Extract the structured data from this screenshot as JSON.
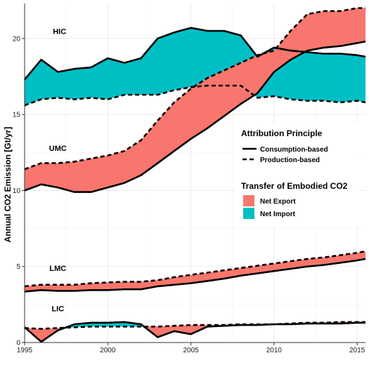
{
  "chart_data": {
    "type": "area",
    "xlabel": "",
    "ylabel": "Annual CO2 Emission [Gt/yr]",
    "xlim": [
      1995,
      2015.5
    ],
    "ylim": [
      0,
      22.3
    ],
    "x_ticks": [
      "1995",
      "2000",
      "2005",
      "2010",
      "2015"
    ],
    "y_ticks": [
      "0",
      "5",
      "10",
      "15",
      "20"
    ],
    "grid": true,
    "colors": {
      "net_export": "#f8766d",
      "net_import": "#00bfc4",
      "line": "#000000",
      "grid": "#ebebeb"
    },
    "legend": {
      "placement": "right",
      "attribution_title": "Attribution Principle",
      "consumption_label": "Consumption-based",
      "production_label": "Production-based",
      "transfer_title": "Transfer of Embodied CO2",
      "export_label": "Net Export",
      "import_label": "Net Import"
    },
    "series": [
      {
        "name": "HIC",
        "label_x": 1997.1,
        "label_y": 20.3,
        "x": [
          1995,
          1996,
          1997,
          1998,
          1999,
          2000,
          2001,
          2002,
          2003,
          2004,
          2005,
          2006,
          2007,
          2008,
          2009,
          2010,
          2011,
          2012,
          2013,
          2014,
          2015,
          2015.5
        ],
        "consumption": [
          17.3,
          18.6,
          17.8,
          18.0,
          18.1,
          18.7,
          18.4,
          18.7,
          20.0,
          20.4,
          20.7,
          20.5,
          20.5,
          20.2,
          18.8,
          19.4,
          19.2,
          19.1,
          19.0,
          19.0,
          18.9,
          18.8
        ],
        "production": [
          15.6,
          16.0,
          16.1,
          16.0,
          16.1,
          16.0,
          16.3,
          16.3,
          16.3,
          16.6,
          16.8,
          16.9,
          16.9,
          16.9,
          16.1,
          16.2,
          16.0,
          15.9,
          15.9,
          15.8,
          15.9,
          15.8
        ]
      },
      {
        "name": "UMC",
        "label_x": 1997.0,
        "label_y": 12.6,
        "x": [
          1995,
          1996,
          1997,
          1998,
          1999,
          2000,
          2001,
          2002,
          2003,
          2004,
          2005,
          2006,
          2007,
          2008,
          2009,
          2010,
          2011,
          2012,
          2013,
          2014,
          2015,
          2015.5
        ],
        "consumption": [
          10.0,
          10.4,
          10.2,
          9.9,
          9.9,
          10.2,
          10.5,
          11.0,
          11.8,
          12.6,
          13.4,
          14.1,
          14.9,
          15.7,
          16.4,
          17.8,
          18.6,
          19.2,
          19.4,
          19.5,
          19.7,
          19.8
        ],
        "production": [
          11.4,
          11.8,
          11.8,
          11.9,
          12.1,
          12.3,
          12.6,
          13.3,
          14.6,
          15.8,
          16.7,
          17.4,
          17.9,
          18.4,
          18.9,
          19.2,
          20.5,
          21.6,
          21.8,
          21.8,
          22.0,
          22.0
        ]
      },
      {
        "name": "LMC",
        "label_x": 1997.0,
        "label_y": 4.7,
        "x": [
          1995,
          1996,
          1997,
          1998,
          1999,
          2000,
          2001,
          2002,
          2003,
          2004,
          2005,
          2006,
          2007,
          2008,
          2009,
          2010,
          2011,
          2012,
          2013,
          2014,
          2015,
          2015.5
        ],
        "consumption": [
          3.35,
          3.45,
          3.4,
          3.4,
          3.45,
          3.45,
          3.5,
          3.5,
          3.7,
          3.8,
          3.9,
          4.05,
          4.2,
          4.4,
          4.55,
          4.7,
          4.85,
          5.0,
          5.1,
          5.25,
          5.4,
          5.5
        ],
        "production": [
          3.7,
          3.8,
          3.8,
          3.8,
          3.9,
          3.95,
          4.0,
          4.0,
          4.1,
          4.3,
          4.45,
          4.6,
          4.75,
          4.9,
          5.05,
          5.2,
          5.35,
          5.5,
          5.6,
          5.75,
          5.9,
          6.0
        ]
      },
      {
        "name": "LIC",
        "label_x": 1997.0,
        "label_y": 2.05,
        "x": [
          1995,
          1996,
          1997,
          1998,
          1999,
          2000,
          2001,
          2002,
          2003,
          2004,
          2005,
          2006,
          2007,
          2008,
          2009,
          2010,
          2011,
          2012,
          2013,
          2014,
          2015,
          2015.5
        ],
        "consumption": [
          1.0,
          0.05,
          0.8,
          1.2,
          1.3,
          1.3,
          1.35,
          1.2,
          0.35,
          0.75,
          0.55,
          1.05,
          1.1,
          1.15,
          1.15,
          1.2,
          1.2,
          1.25,
          1.25,
          1.25,
          1.3,
          1.3
        ],
        "production": [
          0.95,
          0.9,
          0.95,
          1.0,
          1.05,
          1.05,
          1.05,
          1.05,
          1.05,
          1.1,
          1.15,
          1.15,
          1.15,
          1.2,
          1.2,
          1.2,
          1.25,
          1.3,
          1.3,
          1.35,
          1.35,
          1.35
        ]
      }
    ]
  }
}
